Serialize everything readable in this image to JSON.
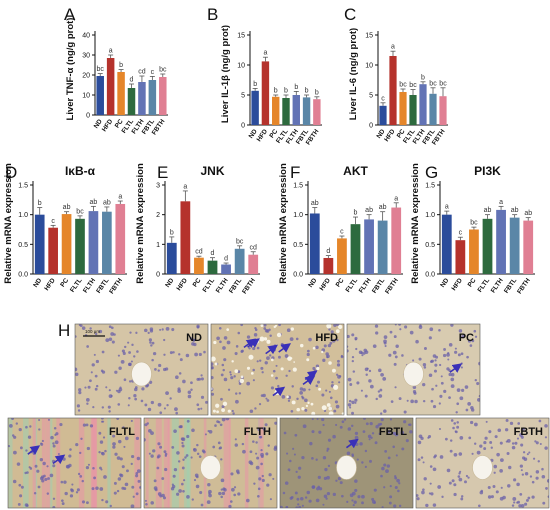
{
  "colors": {
    "ND": "#2b4c9b",
    "HFD": "#b5322c",
    "PC": "#e5862a",
    "FLTL": "#2d6a3e",
    "FLTH": "#6273b5",
    "FBTL": "#5a86a7",
    "FBTH": "#e07f93",
    "arrow": "#3a31b8",
    "error": "#555555"
  },
  "chart_data": [
    {
      "panel": "A",
      "type": "bar",
      "title": "",
      "ylabel": "Liver TNF-α (ng/g prot)",
      "categories": [
        "ND",
        "HFD",
        "PC",
        "FLTL",
        "FLTH",
        "FBTL",
        "FBTH"
      ],
      "values": [
        19.5,
        28.5,
        21.5,
        13.5,
        16.5,
        17.5,
        19
      ],
      "errors": [
        1.2,
        1.5,
        1.2,
        2,
        3,
        1.8,
        1.5
      ],
      "letters": [
        "bc",
        "a",
        "b",
        "d",
        "cd",
        "c",
        "bc"
      ],
      "ylim": [
        0,
        40
      ],
      "yticks": [
        "0",
        "10",
        "20",
        "30",
        "40"
      ]
    },
    {
      "panel": "B",
      "type": "bar",
      "title": "",
      "ylabel": "Liver IL-1β (ng/g prot)",
      "categories": [
        "ND",
        "HFD",
        "PC",
        "FLTL",
        "FLTH",
        "FBTL",
        "FBTH"
      ],
      "values": [
        5.7,
        10.6,
        4.7,
        4.5,
        5.0,
        4.6,
        4.3
      ],
      "errors": [
        0.4,
        0.7,
        0.3,
        0.5,
        0.6,
        0.4,
        0.4
      ],
      "letters": [
        "b",
        "a",
        "b",
        "b",
        "b",
        "b",
        "b"
      ],
      "ylim": [
        0,
        15
      ],
      "yticks": [
        "0",
        "5",
        "10",
        "15"
      ]
    },
    {
      "panel": "C",
      "type": "bar",
      "title": "",
      "ylabel": "Liver IL-6 (ng/g prot)",
      "categories": [
        "ND",
        "HFD",
        "PC",
        "FLTL",
        "FLTH",
        "FBTL",
        "FBTH"
      ],
      "values": [
        3.2,
        11.5,
        5.5,
        5.0,
        6.8,
        5.2,
        4.8
      ],
      "errors": [
        0.5,
        0.8,
        0.5,
        0.9,
        0.4,
        1.0,
        1.4
      ],
      "letters": [
        "c",
        "a",
        "bc",
        "bc",
        "b",
        "bc",
        "bc"
      ],
      "ylim": [
        0,
        15
      ],
      "yticks": [
        "0",
        "5",
        "10",
        "15"
      ]
    },
    {
      "panel": "D",
      "type": "bar",
      "title": "IκB-α",
      "ylabel": "Relative mRNA expression",
      "categories": [
        "ND",
        "HFD",
        "PC",
        "FLTL",
        "FLTH",
        "FBTL",
        "FBTH"
      ],
      "values": [
        1.0,
        0.78,
        1.01,
        0.93,
        1.06,
        1.05,
        1.18
      ],
      "errors": [
        0.12,
        0.04,
        0.04,
        0.05,
        0.08,
        0.08,
        0.05
      ],
      "letters": [
        "b",
        "c",
        "ab",
        "bc",
        "ab",
        "ab",
        "a"
      ],
      "ylim": [
        0,
        1.5
      ],
      "yticks": [
        "0.0",
        "0.5",
        "1.0",
        "1.5"
      ]
    },
    {
      "panel": "E",
      "type": "bar",
      "title": "JNK",
      "ylabel": "Relative mRNA expression",
      "categories": [
        "ND",
        "HFD",
        "PC",
        "FLTL",
        "FLTH",
        "FBTL",
        "FBTH"
      ],
      "values": [
        1.05,
        2.45,
        0.55,
        0.45,
        0.32,
        0.85,
        0.65
      ],
      "errors": [
        0.2,
        0.35,
        0.05,
        0.1,
        0.05,
        0.1,
        0.1
      ],
      "letters": [
        "b",
        "a",
        "cd",
        "d",
        "d",
        "bc",
        "cd"
      ],
      "ylim": [
        0,
        3
      ],
      "yticks": [
        "0",
        "1",
        "2",
        "3"
      ]
    },
    {
      "panel": "F",
      "type": "bar",
      "title": "AKT",
      "ylabel": "Relative mRNA expression",
      "categories": [
        "ND",
        "HFD",
        "PC",
        "FLTL",
        "FLTH",
        "FBTL",
        "FBTH"
      ],
      "values": [
        1.02,
        0.27,
        0.6,
        0.84,
        0.92,
        0.9,
        1.12
      ],
      "errors": [
        0.1,
        0.04,
        0.04,
        0.12,
        0.08,
        0.15,
        0.08
      ],
      "letters": [
        "ab",
        "d",
        "c",
        "b",
        "ab",
        "ab",
        "a"
      ],
      "ylim": [
        0,
        1.5
      ],
      "yticks": [
        "0.0",
        "0.5",
        "1.0",
        "1.5"
      ]
    },
    {
      "panel": "G",
      "type": "bar",
      "title": "PI3K",
      "ylabel": "Relative mRNA expression",
      "categories": [
        "ND",
        "HFD",
        "PC",
        "FLTL",
        "FLTH",
        "FBTL",
        "FBTH"
      ],
      "values": [
        1.0,
        0.57,
        0.75,
        0.93,
        1.08,
        0.95,
        0.9
      ],
      "errors": [
        0.06,
        0.05,
        0.04,
        0.07,
        0.06,
        0.05,
        0.05
      ],
      "letters": [
        "a",
        "c",
        "bc",
        "ab",
        "a",
        "ab",
        "ab"
      ],
      "ylim": [
        0,
        1.5
      ],
      "yticks": [
        "0.0",
        "0.5",
        "1.0",
        "1.5"
      ]
    }
  ],
  "micrographs": {
    "panel": "H",
    "scale_bar": "100 μm",
    "images": [
      {
        "label": "ND",
        "arrows": 0,
        "vein": true,
        "stain": "#d5c5a6",
        "droplets": false,
        "pink": false
      },
      {
        "label": "HFD",
        "arrows": 7,
        "vein": false,
        "stain": "#d2bf9b",
        "droplets": true,
        "pink": false
      },
      {
        "label": "PC",
        "arrows": 1,
        "vein": true,
        "stain": "#d8cbb0",
        "droplets": false,
        "pink": false
      },
      {
        "label": "FLTL",
        "arrows": 2,
        "vein": false,
        "stain": "#d0bb94",
        "droplets": false,
        "pink": true
      },
      {
        "label": "FLTH",
        "arrows": 0,
        "vein": true,
        "stain": "#cfbc97",
        "droplets": false,
        "pink": true
      },
      {
        "label": "FBTL",
        "arrows": 1,
        "vein": true,
        "stain": "#9e9478",
        "droplets": false,
        "pink": false
      },
      {
        "label": "FBTH",
        "arrows": 0,
        "vein": true,
        "stain": "#d6c8ae",
        "droplets": false,
        "pink": false
      }
    ]
  }
}
